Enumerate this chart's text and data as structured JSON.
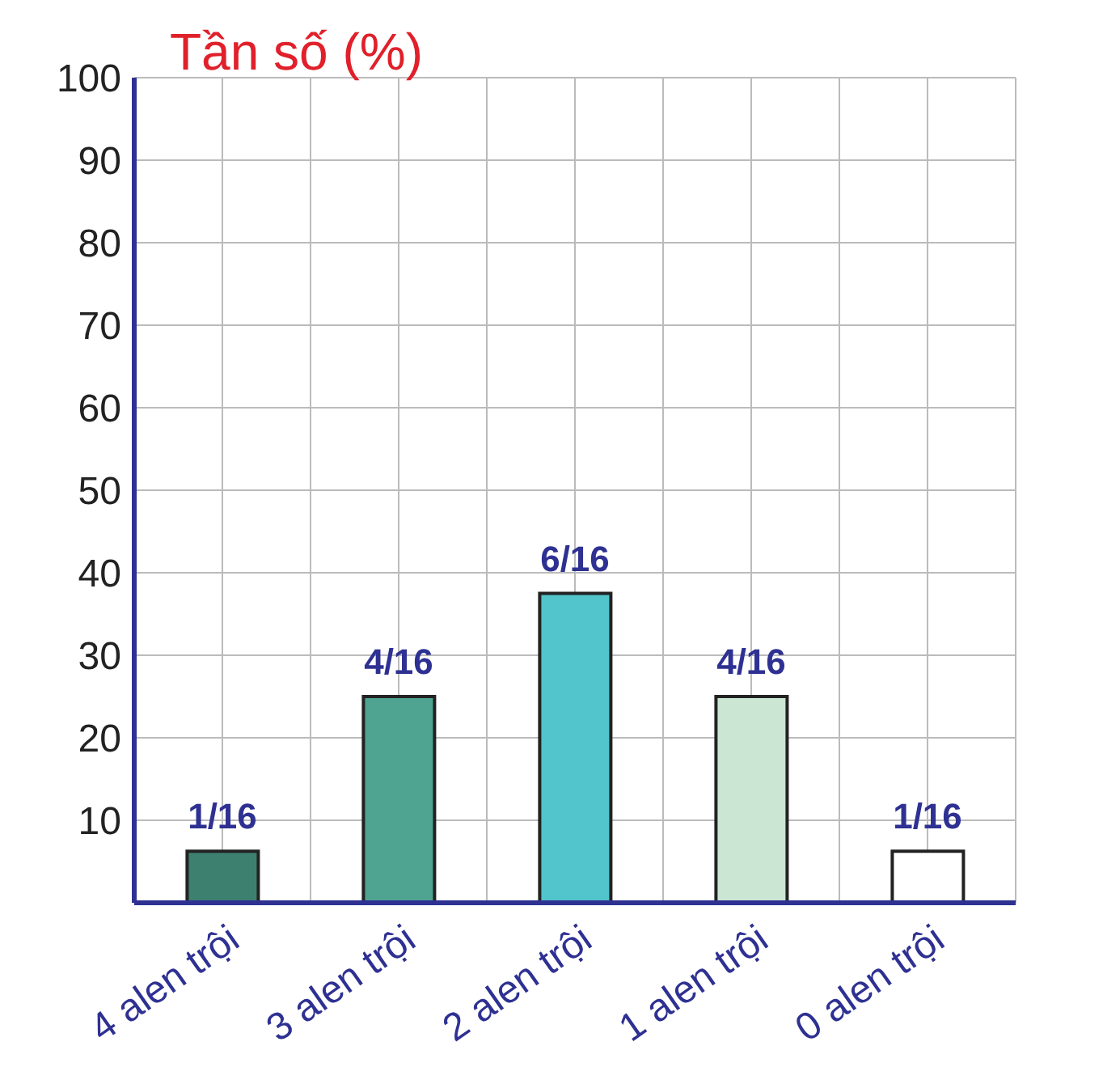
{
  "chart_data": {
    "type": "bar",
    "title": "Tần số (%)",
    "categories": [
      "4 alen trội",
      "3 alen trội",
      "2 alen trội",
      "1 alen trội",
      "0 alen trội"
    ],
    "values": [
      6.25,
      25,
      37.5,
      25,
      6.25
    ],
    "colors": [
      "#3d8070",
      "#4fa391",
      "#52c4cc",
      "#cce6d4",
      "#ffffff"
    ],
    "annotations": [
      {
        "text": "1/16",
        "x": "4 alen trội",
        "y": 6.25
      },
      {
        "text": "4/16",
        "x": "3 alen trội",
        "y": 25
      },
      {
        "text": "6/16",
        "x": "2 alen trội",
        "y": 37.5
      },
      {
        "text": "4/16",
        "x": "1 alen trội",
        "y": 25
      },
      {
        "text": "1/16",
        "x": "0 alen trội",
        "y": 6.25
      }
    ],
    "ylim": [
      0,
      100
    ],
    "yticks": [
      10,
      20,
      30,
      40,
      50,
      60,
      70,
      80,
      90,
      100
    ],
    "grid": true
  }
}
